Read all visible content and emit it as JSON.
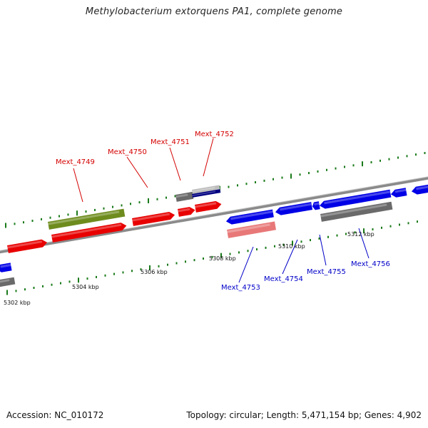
{
  "title": "Methylobacterium extorquens PA1, complete genome",
  "footer": {
    "accession": "Accession: NC_010172",
    "stats": "Topology: circular; Length: 5,471,154 bp; Genes: 4,902"
  },
  "colors": {
    "forward_gene": "#e80000",
    "reverse_gene": "#0000e6",
    "rna_gene": "#6e8c1e",
    "pseudo_gray": "#6a6a6a",
    "light_gray": "#bdbdbd",
    "navy": "#000080",
    "pink": "#e87878",
    "tick": "#1a7a1a",
    "backbone": "#8a8a8a",
    "forward_label": "#d40000",
    "reverse_label": "#0000c8"
  },
  "scale_labels": [
    "5302 kbp",
    "5304 kbp",
    "5306 kbp",
    "5308 kbp",
    "5310 kbp",
    "5312 kbp"
  ],
  "forward_labels": [
    "Mext_4749",
    "Mext_4750",
    "Mext_4751",
    "Mext_4752"
  ],
  "reverse_labels": [
    "Mext_4753",
    "Mext_4754",
    "Mext_4755",
    "Mext_4756"
  ]
}
